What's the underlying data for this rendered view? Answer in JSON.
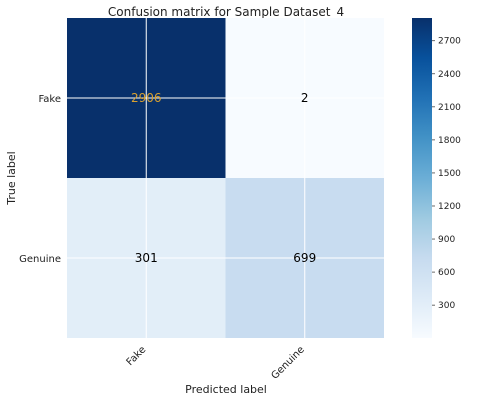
{
  "chart_data": {
    "type": "heatmap",
    "title": "Confusion matrix for Sample Dataset_4",
    "xlabel": "Predicted label",
    "ylabel": "True label",
    "x_categories": [
      "Fake",
      "Genuine"
    ],
    "y_categories": [
      "Fake",
      "Genuine"
    ],
    "values": [
      [
        2906,
        2
      ],
      [
        301,
        699
      ]
    ],
    "colormap": "Blues",
    "colorbar": {
      "ticks": [
        300,
        600,
        900,
        1200,
        1500,
        1800,
        2100,
        2400,
        2700
      ],
      "range": [
        2,
        2906
      ]
    },
    "grid": true,
    "colors": {
      "dark_cell_text": "#d8a030",
      "light_cell_text": "#000000",
      "grid_line": "#ffffff"
    }
  }
}
